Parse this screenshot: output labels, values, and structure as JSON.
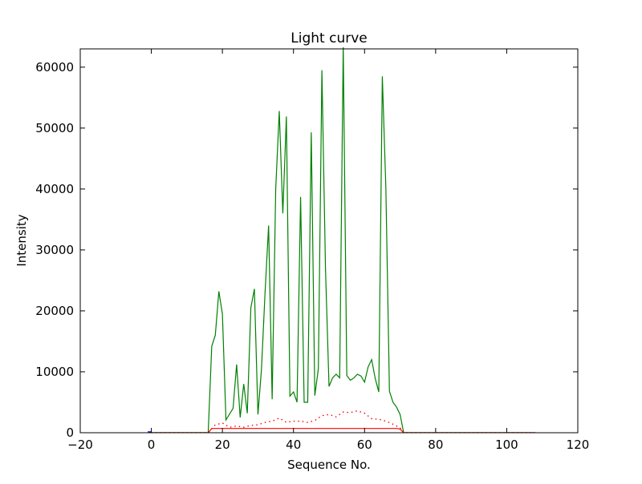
{
  "chart_data": {
    "type": "line",
    "title": "Light curve",
    "xlabel": "Sequence No.",
    "ylabel": "Intensity",
    "xlim": [
      -20,
      120
    ],
    "ylim": [
      0,
      63000
    ],
    "xticks": [
      -20,
      0,
      20,
      40,
      60,
      80,
      100,
      120
    ],
    "yticks": [
      0,
      10000,
      20000,
      30000,
      40000,
      50000,
      60000
    ],
    "grid": false,
    "legend": "none",
    "series": [
      {
        "color": "#0000ff",
        "style": "solid",
        "x": [
          -1,
          0
        ],
        "y": [
          150,
          150
        ]
      },
      {
        "color": "#008000",
        "style": "solid",
        "x": [
          0,
          16,
          17,
          18,
          19,
          20,
          21,
          23,
          24,
          25,
          26,
          27,
          28,
          29,
          30,
          31,
          32,
          33,
          34,
          35,
          36,
          37,
          38,
          39,
          40,
          41,
          42,
          43,
          44,
          45,
          46,
          47,
          48,
          49,
          50,
          51,
          52,
          53,
          54,
          55,
          56,
          57,
          58,
          59,
          60,
          61,
          62,
          63,
          64,
          65,
          66,
          67,
          68,
          69,
          70,
          71,
          108
        ],
        "y": [
          0,
          0,
          14200,
          16000,
          23200,
          19500,
          2100,
          4000,
          11200,
          2500,
          8000,
          3200,
          20500,
          23600,
          3000,
          10500,
          23000,
          34000,
          5500,
          40000,
          52800,
          36000,
          51900,
          6000,
          6700,
          5000,
          38700,
          5000,
          5000,
          49300,
          6100,
          10500,
          59500,
          27000,
          7600,
          9000,
          9600,
          9000,
          63500,
          9400,
          8600,
          9000,
          9600,
          9300,
          8300,
          10800,
          12000,
          8900,
          6700,
          58500,
          40000,
          6800,
          5000,
          4200,
          3000,
          0,
          0
        ]
      },
      {
        "color": "#ff0000",
        "style": "dotted",
        "x": [
          0,
          16,
          18,
          20,
          22,
          24,
          26,
          28,
          30,
          32,
          34,
          36,
          38,
          40,
          42,
          44,
          46,
          48,
          50,
          52,
          54,
          56,
          58,
          60,
          62,
          64,
          66,
          68,
          70,
          71,
          108
        ],
        "y": [
          0,
          0,
          1300,
          1600,
          900,
          1100,
          900,
          1200,
          1300,
          1700,
          1900,
          2400,
          1700,
          1900,
          1900,
          1700,
          2000,
          2800,
          3000,
          2600,
          3400,
          3300,
          3600,
          3200,
          2300,
          2200,
          1900,
          1400,
          800,
          0,
          0
        ]
      },
      {
        "color": "#ff0000",
        "style": "solid",
        "x": [
          0,
          16,
          17,
          68,
          69,
          70,
          71,
          108
        ],
        "y": [
          0,
          0,
          700,
          700,
          700,
          600,
          0,
          0
        ]
      }
    ]
  }
}
